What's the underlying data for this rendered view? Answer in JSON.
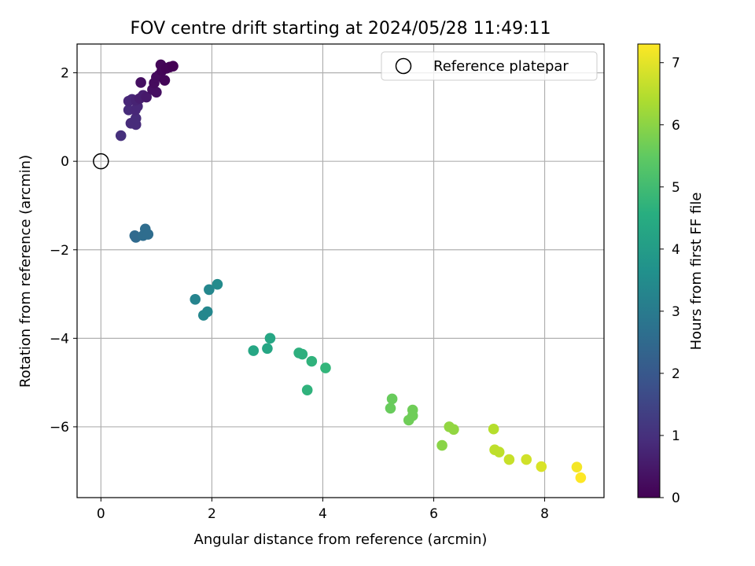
{
  "chart_data": {
    "type": "scatter",
    "title": "FOV centre drift starting at 2024/05/28 11:49:11",
    "xlabel": "Angular distance from reference (arcmin)",
    "ylabel": "Rotation from reference (arcmin)",
    "xlim": [
      -0.43,
      9.07
    ],
    "ylim": [
      -7.6,
      2.65
    ],
    "xticks": [
      0,
      2,
      4,
      6,
      8
    ],
    "yticks": [
      -6,
      -4,
      -2,
      0,
      2
    ],
    "grid": true,
    "legend": {
      "placement": "top-right",
      "entries": [
        "Reference platepar"
      ]
    },
    "reference_point": {
      "x": 0,
      "y": 0,
      "label": "Reference platepar"
    },
    "colorbar": {
      "label": "Hours from first FF file",
      "range": [
        0,
        7.3
      ],
      "ticks": [
        0,
        1,
        2,
        3,
        4,
        5,
        6,
        7
      ],
      "colormap": "viridis"
    },
    "points": [
      {
        "x": 0.36,
        "y": 0.58,
        "c": 1.0
      },
      {
        "x": 0.54,
        "y": 0.86,
        "c": 0.9
      },
      {
        "x": 0.63,
        "y": 0.83,
        "c": 0.9
      },
      {
        "x": 0.63,
        "y": 0.97,
        "c": 0.9
      },
      {
        "x": 0.5,
        "y": 1.16,
        "c": 0.9
      },
      {
        "x": 0.62,
        "y": 1.16,
        "c": 0.8
      },
      {
        "x": 0.66,
        "y": 1.24,
        "c": 0.8
      },
      {
        "x": 0.5,
        "y": 1.36,
        "c": 0.8
      },
      {
        "x": 0.56,
        "y": 1.4,
        "c": 0.8
      },
      {
        "x": 0.63,
        "y": 1.38,
        "c": 0.7
      },
      {
        "x": 0.7,
        "y": 1.42,
        "c": 0.6
      },
      {
        "x": 0.76,
        "y": 1.49,
        "c": 0.6
      },
      {
        "x": 0.82,
        "y": 1.45,
        "c": 0.5
      },
      {
        "x": 0.72,
        "y": 1.78,
        "c": 0.3
      },
      {
        "x": 0.93,
        "y": 1.62,
        "c": 0.3
      },
      {
        "x": 1.0,
        "y": 1.56,
        "c": 0.3
      },
      {
        "x": 0.96,
        "y": 1.77,
        "c": 0.2
      },
      {
        "x": 1.0,
        "y": 1.9,
        "c": 0.2
      },
      {
        "x": 1.05,
        "y": 1.95,
        "c": 0.2
      },
      {
        "x": 1.1,
        "y": 2.05,
        "c": 0.1
      },
      {
        "x": 1.08,
        "y": 2.18,
        "c": 0.1
      },
      {
        "x": 1.15,
        "y": 1.83,
        "c": 0.1
      },
      {
        "x": 1.18,
        "y": 2.1,
        "c": 0.05
      },
      {
        "x": 1.24,
        "y": 2.13,
        "c": 0.05
      },
      {
        "x": 1.3,
        "y": 2.15,
        "c": 0.0
      },
      {
        "x": 0.61,
        "y": -1.68,
        "c": 2.5
      },
      {
        "x": 0.63,
        "y": -1.72,
        "c": 2.5
      },
      {
        "x": 0.76,
        "y": -1.68,
        "c": 2.6
      },
      {
        "x": 0.8,
        "y": -1.53,
        "c": 2.6
      },
      {
        "x": 0.85,
        "y": -1.65,
        "c": 2.6
      },
      {
        "x": 1.7,
        "y": -3.12,
        "c": 3.3
      },
      {
        "x": 1.85,
        "y": -3.48,
        "c": 3.4
      },
      {
        "x": 1.92,
        "y": -3.4,
        "c": 3.4
      },
      {
        "x": 1.95,
        "y": -2.9,
        "c": 3.4
      },
      {
        "x": 2.1,
        "y": -2.78,
        "c": 3.5
      },
      {
        "x": 2.75,
        "y": -4.28,
        "c": 4.3
      },
      {
        "x": 3.0,
        "y": -4.23,
        "c": 4.3
      },
      {
        "x": 3.05,
        "y": -4.0,
        "c": 4.3
      },
      {
        "x": 3.57,
        "y": -4.33,
        "c": 4.6
      },
      {
        "x": 3.63,
        "y": -4.36,
        "c": 4.6
      },
      {
        "x": 3.72,
        "y": -5.17,
        "c": 4.7
      },
      {
        "x": 3.8,
        "y": -4.52,
        "c": 4.7
      },
      {
        "x": 4.05,
        "y": -4.67,
        "c": 4.8
      },
      {
        "x": 5.22,
        "y": -5.58,
        "c": 5.6
      },
      {
        "x": 5.25,
        "y": -5.37,
        "c": 5.6
      },
      {
        "x": 5.55,
        "y": -5.85,
        "c": 5.7
      },
      {
        "x": 5.62,
        "y": -5.62,
        "c": 5.7
      },
      {
        "x": 5.62,
        "y": -5.75,
        "c": 5.7
      },
      {
        "x": 6.15,
        "y": -6.42,
        "c": 6.0
      },
      {
        "x": 6.28,
        "y": -6.0,
        "c": 6.1
      },
      {
        "x": 6.36,
        "y": -6.06,
        "c": 6.1
      },
      {
        "x": 7.08,
        "y": -6.05,
        "c": 6.5
      },
      {
        "x": 7.1,
        "y": -6.52,
        "c": 6.6
      },
      {
        "x": 7.18,
        "y": -6.57,
        "c": 6.6
      },
      {
        "x": 7.36,
        "y": -6.74,
        "c": 6.7
      },
      {
        "x": 7.67,
        "y": -6.74,
        "c": 6.8
      },
      {
        "x": 7.94,
        "y": -6.9,
        "c": 6.9
      },
      {
        "x": 8.58,
        "y": -6.91,
        "c": 7.2
      },
      {
        "x": 8.65,
        "y": -7.15,
        "c": 7.3
      }
    ]
  }
}
